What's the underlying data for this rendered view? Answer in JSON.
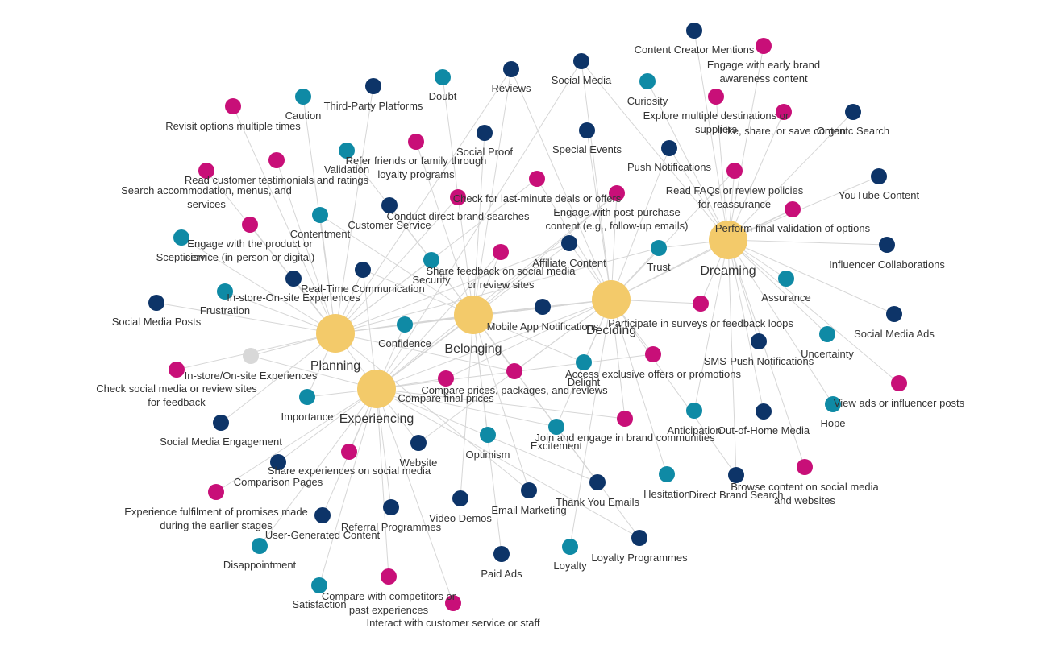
{
  "colors": {
    "hub": "#f3ca6a",
    "channel": "#0d3468",
    "emotion": "#0f8aa5",
    "action": "#c80f78",
    "other": "#d8d8d8",
    "edge": "#d6d6d6",
    "text": "#333333"
  },
  "nodes": [
    {
      "id": "planning",
      "label": "Planning",
      "cat": "hub"
    },
    {
      "id": "belonging",
      "label": "Belonging",
      "cat": "hub"
    },
    {
      "id": "deciding",
      "label": "Deciding",
      "cat": "hub"
    },
    {
      "id": "dreaming",
      "label": "Dreaming",
      "cat": "hub"
    },
    {
      "id": "experiencing",
      "label": "Experiencing",
      "cat": "hub"
    },
    {
      "id": "in-store-on-site-experiences",
      "label": "In-store/On-site Experiences",
      "cat": "other"
    },
    {
      "id": "content-creator-mentions",
      "label": "Content Creator Mentions",
      "cat": "channel"
    },
    {
      "id": "social-media",
      "label": "Social Media",
      "cat": "channel"
    },
    {
      "id": "reviews",
      "label": "Reviews",
      "cat": "channel"
    },
    {
      "id": "third-party-platforms",
      "label": "Third-Party Platforms",
      "cat": "channel"
    },
    {
      "id": "organic-search",
      "label": "Organic Search",
      "cat": "channel"
    },
    {
      "id": "social-proof",
      "label": "Social Proof",
      "cat": "channel"
    },
    {
      "id": "special-events",
      "label": "Special Events",
      "cat": "channel"
    },
    {
      "id": "push-notifications",
      "label": "Push Notifications",
      "cat": "channel"
    },
    {
      "id": "youtube-content",
      "label": "YouTube Content",
      "cat": "channel"
    },
    {
      "id": "customer-service",
      "label": "Customer Service",
      "cat": "channel"
    },
    {
      "id": "affiliate-content",
      "label": "Affiliate Content",
      "cat": "channel"
    },
    {
      "id": "influencer-collaborations",
      "label": "Influencer Collaborations",
      "cat": "channel"
    },
    {
      "id": "real-time-communication",
      "label": "Real-Time Communication",
      "cat": "channel"
    },
    {
      "id": "in-store-on-site-experiences-2",
      "label": "In-store-On-site Experiences",
      "cat": "channel"
    },
    {
      "id": "social-media-posts",
      "label": "Social Media Posts",
      "cat": "channel"
    },
    {
      "id": "mobile-app-notifications",
      "label": "Mobile App Notifications",
      "cat": "channel"
    },
    {
      "id": "social-media-ads",
      "label": "Social Media Ads",
      "cat": "channel"
    },
    {
      "id": "sms-push-notifications",
      "label": "SMS-Push Notifications",
      "cat": "channel"
    },
    {
      "id": "social-media-engagement",
      "label": "Social Media Engagement",
      "cat": "channel"
    },
    {
      "id": "out-of-home-media",
      "label": "Out-of-Home Media",
      "cat": "channel"
    },
    {
      "id": "website",
      "label": "Website",
      "cat": "channel"
    },
    {
      "id": "comparison-pages",
      "label": "Comparison Pages",
      "cat": "channel"
    },
    {
      "id": "direct-brand-search",
      "label": "Direct Brand Search",
      "cat": "channel"
    },
    {
      "id": "thank-you-emails",
      "label": "Thank You Emails",
      "cat": "channel"
    },
    {
      "id": "email-marketing",
      "label": "Email Marketing",
      "cat": "channel"
    },
    {
      "id": "video-demos",
      "label": "Video Demos",
      "cat": "channel"
    },
    {
      "id": "user-generated-content",
      "label": "User-Generated Content",
      "cat": "channel"
    },
    {
      "id": "referral-programmes",
      "label": "Referral Programmes",
      "cat": "channel"
    },
    {
      "id": "loyalty-programmes",
      "label": "Loyalty Programmes",
      "cat": "channel"
    },
    {
      "id": "paid-ads",
      "label": "Paid Ads",
      "cat": "channel"
    },
    {
      "id": "doubt",
      "label": "Doubt",
      "cat": "emotion"
    },
    {
      "id": "caution",
      "label": "Caution",
      "cat": "emotion"
    },
    {
      "id": "curiosity",
      "label": "Curiosity",
      "cat": "emotion"
    },
    {
      "id": "validation",
      "label": "Validation",
      "cat": "emotion"
    },
    {
      "id": "contentment",
      "label": "Contentment",
      "cat": "emotion"
    },
    {
      "id": "scepticism",
      "label": "Scepticism",
      "cat": "emotion"
    },
    {
      "id": "security",
      "label": "Security",
      "cat": "emotion"
    },
    {
      "id": "trust",
      "label": "Trust",
      "cat": "emotion"
    },
    {
      "id": "frustration",
      "label": "Frustration",
      "cat": "emotion"
    },
    {
      "id": "assurance",
      "label": "Assurance",
      "cat": "emotion"
    },
    {
      "id": "confidence",
      "label": "Confidence",
      "cat": "emotion"
    },
    {
      "id": "uncertainty",
      "label": "Uncertainty",
      "cat": "emotion"
    },
    {
      "id": "delight",
      "label": "Delight",
      "cat": "emotion"
    },
    {
      "id": "importance",
      "label": "Importance",
      "cat": "emotion"
    },
    {
      "id": "hope",
      "label": "Hope",
      "cat": "emotion"
    },
    {
      "id": "anticipation",
      "label": "Anticipation",
      "cat": "emotion"
    },
    {
      "id": "excitement",
      "label": "Excitement",
      "cat": "emotion"
    },
    {
      "id": "optimism",
      "label": "Optimism",
      "cat": "emotion"
    },
    {
      "id": "hesitation",
      "label": "Hesitation",
      "cat": "emotion"
    },
    {
      "id": "disappointment",
      "label": "Disappointment",
      "cat": "emotion"
    },
    {
      "id": "loyalty",
      "label": "Loyalty",
      "cat": "emotion"
    },
    {
      "id": "satisfaction",
      "label": "Satisfaction",
      "cat": "emotion"
    },
    {
      "id": "engage-early-awareness",
      "label": "Engage with early brand awareness content",
      "cat": "action"
    },
    {
      "id": "explore-destinations",
      "label": "Explore multiple destinations or suppliers",
      "cat": "action"
    },
    {
      "id": "like-share-save",
      "label": "Like, share, or save content",
      "cat": "action"
    },
    {
      "id": "revisit-options",
      "label": "Revisit options multiple times",
      "cat": "action"
    },
    {
      "id": "refer-friends",
      "label": "Refer friends or family through loyalty programs",
      "cat": "action"
    },
    {
      "id": "read-testimonials",
      "label": "Read customer testimonials and ratings",
      "cat": "action"
    },
    {
      "id": "search-accommodation",
      "label": "Search accommodation, menus, and services",
      "cat": "action"
    },
    {
      "id": "check-last-minute",
      "label": "Check for last-minute deals or offers",
      "cat": "action"
    },
    {
      "id": "read-faqs",
      "label": "Read FAQs or review policies for reassurance",
      "cat": "action"
    },
    {
      "id": "conduct-direct-searches",
      "label": "Conduct direct brand searches",
      "cat": "action"
    },
    {
      "id": "engage-post-purchase",
      "label": "Engage with post-purchase content (e.g., follow-up emails)",
      "cat": "action"
    },
    {
      "id": "perform-final-validation",
      "label": "Perform final validation of options",
      "cat": "action"
    },
    {
      "id": "engage-product-service",
      "label": "Engage with the product or service (in-person or digital)",
      "cat": "action"
    },
    {
      "id": "share-feedback",
      "label": "Share feedback on social media or review sites",
      "cat": "action"
    },
    {
      "id": "participate-surveys",
      "label": "Participate in surveys or feedback loops",
      "cat": "action"
    },
    {
      "id": "check-social-review",
      "label": "Check social media or review sites for feedback",
      "cat": "action"
    },
    {
      "id": "access-exclusive-offers",
      "label": "Access exclusive offers or promotions",
      "cat": "action"
    },
    {
      "id": "compare-final-prices",
      "label": "Compare final prices",
      "cat": "action"
    },
    {
      "id": "compare-prices-packages",
      "label": "Compare prices, packages, and reviews",
      "cat": "action"
    },
    {
      "id": "view-ads-influencer",
      "label": "View ads or influencer posts",
      "cat": "action"
    },
    {
      "id": "join-communities",
      "label": "Join and engage in brand communities",
      "cat": "action"
    },
    {
      "id": "share-experiences",
      "label": "Share experiences on social media",
      "cat": "action"
    },
    {
      "id": "browse-content",
      "label": "Browse content on social media and websites",
      "cat": "action"
    },
    {
      "id": "experience-fulfilment",
      "label": "Experience fulfilment of promises made during the earlier stages",
      "cat": "action"
    },
    {
      "id": "compare-competitors",
      "label": "Compare with competitors or past experiences",
      "cat": "action"
    },
    {
      "id": "interact-customer-service",
      "label": "Interact with customer service or staff",
      "cat": "action"
    }
  ],
  "links": [
    [
      "dreaming",
      "content-creator-mentions"
    ],
    [
      "dreaming",
      "engage-early-awareness"
    ],
    [
      "dreaming",
      "curiosity"
    ],
    [
      "dreaming",
      "explore-destinations"
    ],
    [
      "dreaming",
      "like-share-save"
    ],
    [
      "dreaming",
      "organic-search"
    ],
    [
      "dreaming",
      "youtube-content"
    ],
    [
      "dreaming",
      "read-faqs"
    ],
    [
      "dreaming",
      "perform-final-validation"
    ],
    [
      "dreaming",
      "influencer-collaborations"
    ],
    [
      "dreaming",
      "assurance"
    ],
    [
      "dreaming",
      "social-media-ads"
    ],
    [
      "dreaming",
      "uncertainty"
    ],
    [
      "dreaming",
      "view-ads-influencer"
    ],
    [
      "dreaming",
      "hope"
    ],
    [
      "dreaming",
      "sms-push-notifications"
    ],
    [
      "dreaming",
      "out-of-home-media"
    ],
    [
      "dreaming",
      "anticipation"
    ],
    [
      "dreaming",
      "browse-content"
    ],
    [
      "dreaming",
      "push-notifications"
    ],
    [
      "dreaming",
      "social-media"
    ],
    [
      "dreaming",
      "trust"
    ],
    [
      "dreaming",
      "direct-brand-search"
    ],
    [
      "dreaming",
      "participate-surveys"
    ],
    [
      "deciding",
      "special-events"
    ],
    [
      "deciding",
      "affiliate-content"
    ],
    [
      "deciding",
      "trust"
    ],
    [
      "deciding",
      "engage-post-purchase"
    ],
    [
      "deciding",
      "check-last-minute"
    ],
    [
      "deciding",
      "participate-surveys"
    ],
    [
      "deciding",
      "access-exclusive-offers"
    ],
    [
      "deciding",
      "delight"
    ],
    [
      "deciding",
      "mobile-app-notifications"
    ],
    [
      "deciding",
      "compare-final-prices"
    ],
    [
      "deciding",
      "join-communities"
    ],
    [
      "deciding",
      "hesitation"
    ],
    [
      "deciding",
      "direct-brand-search"
    ],
    [
      "deciding",
      "read-faqs"
    ],
    [
      "deciding",
      "excitement"
    ],
    [
      "deciding",
      "website"
    ],
    [
      "deciding",
      "social-media"
    ],
    [
      "deciding",
      "reviews"
    ],
    [
      "deciding",
      "push-notifications"
    ],
    [
      "deciding",
      "loyalty"
    ],
    [
      "deciding",
      "perform-final-validation"
    ],
    [
      "deciding",
      "compare-prices-packages"
    ],
    [
      "deciding",
      "confidence"
    ],
    [
      "belonging",
      "share-feedback"
    ],
    [
      "belonging",
      "security"
    ],
    [
      "belonging",
      "refer-friends"
    ],
    [
      "belonging",
      "social-proof"
    ],
    [
      "belonging",
      "customer-service"
    ],
    [
      "belonging",
      "real-time-communication"
    ],
    [
      "belonging",
      "confidence"
    ],
    [
      "belonging",
      "compare-prices-packages"
    ],
    [
      "belonging",
      "email-marketing"
    ],
    [
      "belonging",
      "optimism"
    ],
    [
      "belonging",
      "loyalty-programmes"
    ],
    [
      "belonging",
      "thank-you-emails"
    ],
    [
      "belonging",
      "video-demos"
    ],
    [
      "belonging",
      "paid-ads"
    ],
    [
      "belonging",
      "doubt"
    ],
    [
      "belonging",
      "engage-post-purchase"
    ],
    [
      "belonging",
      "validation"
    ],
    [
      "belonging",
      "contentment"
    ],
    [
      "belonging",
      "reviews"
    ],
    [
      "belonging",
      "mobile-app-notifications"
    ],
    [
      "belonging",
      "delight"
    ],
    [
      "planning",
      "third-party-platforms"
    ],
    [
      "planning",
      "caution"
    ],
    [
      "planning",
      "revisit-options"
    ],
    [
      "planning",
      "read-testimonials"
    ],
    [
      "planning",
      "search-accommodation"
    ],
    [
      "planning",
      "engage-product-service"
    ],
    [
      "planning",
      "scepticism"
    ],
    [
      "planning",
      "in-store-on-site-experiences-2"
    ],
    [
      "planning",
      "social-media-posts"
    ],
    [
      "planning",
      "frustration"
    ],
    [
      "planning",
      "in-store-on-site-experiences"
    ],
    [
      "planning",
      "check-social-review"
    ],
    [
      "planning",
      "importance"
    ],
    [
      "planning",
      "social-media-engagement"
    ],
    [
      "planning",
      "conduct-direct-searches"
    ],
    [
      "planning",
      "contentment"
    ],
    [
      "planning",
      "real-time-communication"
    ],
    [
      "planning",
      "compare-prices-packages"
    ],
    [
      "planning",
      "mobile-app-notifications"
    ],
    [
      "planning",
      "affiliate-content"
    ],
    [
      "planning",
      "email-marketing"
    ],
    [
      "planning",
      "reviews"
    ],
    [
      "planning",
      "check-last-minute"
    ],
    [
      "planning",
      "security"
    ],
    [
      "planning",
      "trust"
    ],
    [
      "experiencing",
      "share-experiences"
    ],
    [
      "experiencing",
      "comparison-pages"
    ],
    [
      "experiencing",
      "experience-fulfilment"
    ],
    [
      "experiencing",
      "user-generated-content"
    ],
    [
      "experiencing",
      "disappointment"
    ],
    [
      "experiencing",
      "satisfaction"
    ],
    [
      "experiencing",
      "compare-competitors"
    ],
    [
      "experiencing",
      "interact-customer-service"
    ],
    [
      "experiencing",
      "referral-programmes"
    ],
    [
      "experiencing",
      "website"
    ],
    [
      "experiencing",
      "compare-final-prices"
    ],
    [
      "experiencing",
      "importance"
    ],
    [
      "experiencing",
      "in-store-on-site-experiences"
    ],
    [
      "experiencing",
      "confidence"
    ],
    [
      "experiencing",
      "access-exclusive-offers"
    ],
    [
      "experiencing",
      "real-time-communication"
    ],
    [
      "experiencing",
      "join-communities"
    ],
    [
      "experiencing",
      "thank-you-emails"
    ],
    [
      "experiencing",
      "excitement"
    ],
    [
      "experiencing",
      "social-media"
    ],
    [
      "experiencing",
      "engage-post-purchase"
    ],
    [
      "experiencing",
      "share-feedback"
    ],
    [
      "experiencing",
      "loyalty-programmes"
    ],
    [
      "experiencing",
      "affiliate-content"
    ],
    [
      "planning",
      "deciding"
    ],
    [
      "planning",
      "belonging"
    ],
    [
      "planning",
      "experiencing"
    ],
    [
      "belonging",
      "deciding"
    ],
    [
      "deciding",
      "dreaming"
    ],
    [
      "experiencing",
      "deciding"
    ],
    [
      "experiencing",
      "belonging"
    ]
  ]
}
